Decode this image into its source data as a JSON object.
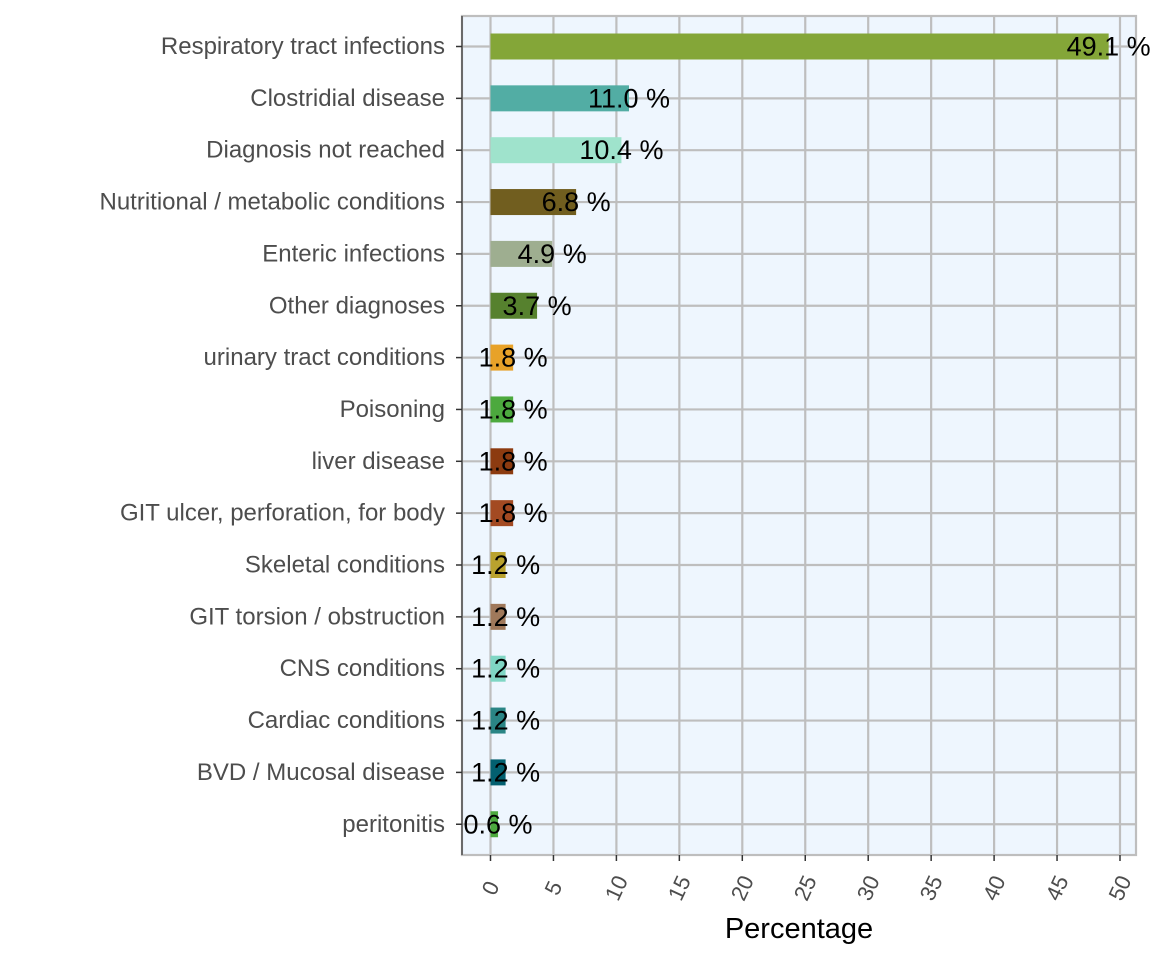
{
  "chart_data": {
    "type": "bar",
    "orientation": "horizontal",
    "xlabel": "Percentage",
    "ylabel": "",
    "xlim": [
      0,
      50
    ],
    "x_ticks": [
      "0",
      "5",
      "10",
      "15",
      "20",
      "25",
      "30",
      "35",
      "40",
      "45",
      "50"
    ],
    "grid": true,
    "categories": [
      "Respiratory tract infections",
      "Clostridial disease",
      "Diagnosis not reached",
      "Nutritional / metabolic conditions",
      "Enteric infections",
      "Other diagnoses",
      "urinary tract conditions",
      "Poisoning",
      "liver disease",
      "GIT ulcer, perforation, for body",
      "Skeletal conditions",
      "GIT torsion / obstruction",
      "CNS conditions",
      "Cardiac conditions",
      "BVD / Mucosal disease",
      "peritonitis"
    ],
    "values": [
      49.1,
      11.0,
      10.4,
      6.8,
      4.9,
      3.7,
      1.8,
      1.8,
      1.8,
      1.8,
      1.2,
      1.2,
      1.2,
      1.2,
      1.2,
      0.6
    ],
    "labels": [
      "49.1 %",
      "11.0 %",
      "10.4 %",
      "6.8 %",
      "4.9 %",
      "3.7 %",
      "1.8 %",
      "1.8 %",
      "1.8 %",
      "1.8 %",
      "1.2 %",
      "1.2 %",
      "1.2 %",
      "1.2 %",
      "1.2 %",
      "0.6 %"
    ],
    "colors": [
      "#84a638",
      "#52ada4",
      "#9fe3cc",
      "#715e1f",
      "#9eae90",
      "#56812e",
      "#e8a228",
      "#4ca93e",
      "#8c3b10",
      "#a34a22",
      "#b9a22e",
      "#a0795b",
      "#7fd6c4",
      "#2a8585",
      "#036070",
      "#4ca93e"
    ],
    "panel_background": "#eef6fe",
    "grid_color": "#bebebe"
  }
}
